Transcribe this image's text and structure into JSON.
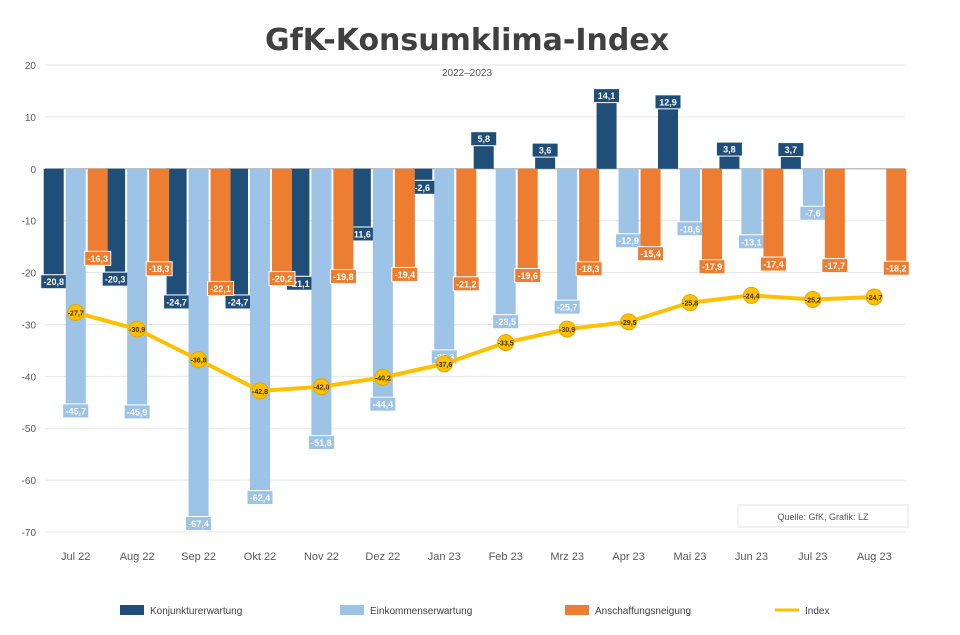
{
  "chart_data": {
    "type": "bar",
    "title": "GfK-Konsumklima-Index",
    "subtitle": "2022–2023",
    "source": "Quelle: GfK, Grafik: LZ",
    "ylim": [
      -70,
      20
    ],
    "yticks": [
      20,
      10,
      0,
      -10,
      -20,
      -30,
      -40,
      -50,
      -60,
      -70
    ],
    "grid": true,
    "legend_position": "bottom",
    "categories": [
      "Jul 22",
      "Aug 22",
      "Sep 22",
      "Okt 22",
      "Nov 22",
      "Dez 22",
      "Jan 23",
      "Feb 23",
      "Mrz 23",
      "Apr 23",
      "Mai 23",
      "Jun 23",
      "Jul 23",
      "Aug 23"
    ],
    "series": [
      {
        "name": "Konjunkturerwartung",
        "type": "bar",
        "color": "#1f4e79",
        "values": [
          -20.8,
          -20.3,
          -24.7,
          -24.7,
          -21.1,
          -11.6,
          -2.6,
          5.8,
          3.6,
          14.1,
          12.9,
          3.8,
          3.7,
          null
        ]
      },
      {
        "name": "Einkommenserwartung",
        "type": "bar",
        "color": "#9dc3e6",
        "values": [
          -45.7,
          -45.9,
          -67.4,
          -62.4,
          -51.8,
          -44.4,
          -35.3,
          -28.5,
          -25.7,
          -12.9,
          -10.6,
          -13.1,
          -7.6,
          null
        ]
      },
      {
        "name": "Anschaffungsneigung",
        "type": "bar",
        "color": "#ed7d31",
        "values": [
          -16.3,
          -18.3,
          -22.1,
          -20.2,
          -19.8,
          -19.4,
          -21.2,
          -19.6,
          -18.3,
          -15.4,
          -17.9,
          -17.4,
          -17.7,
          -18.2
        ]
      },
      {
        "name": "Index",
        "type": "line",
        "color": "#ffc000",
        "values": [
          -27.7,
          -30.9,
          -36.8,
          -42.8,
          -42.0,
          -40.2,
          -37.6,
          -33.5,
          -30.9,
          -29.5,
          -25.8,
          -24.4,
          -25.2,
          -24.7
        ]
      }
    ]
  }
}
